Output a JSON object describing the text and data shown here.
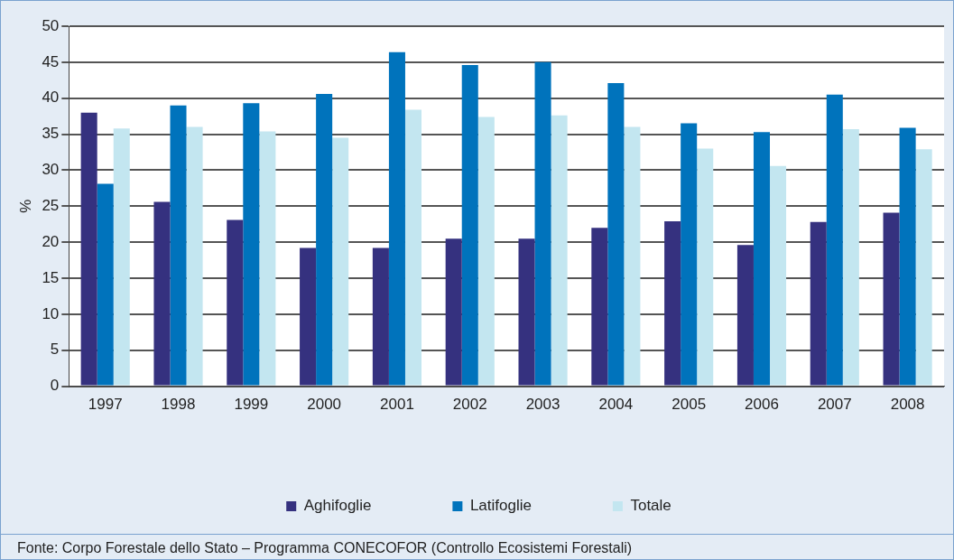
{
  "chart_data": {
    "type": "bar",
    "ylabel": "%",
    "categories": [
      "1997",
      "1998",
      "1999",
      "2000",
      "2001",
      "2002",
      "2003",
      "2004",
      "2005",
      "2006",
      "2007",
      "2008"
    ],
    "series": [
      {
        "name": "Aghifoglie",
        "color": "#35317f",
        "values": [
          38.0,
          25.6,
          23.1,
          19.2,
          19.2,
          20.5,
          20.5,
          22.0,
          22.9,
          19.6,
          22.8,
          24.1
        ]
      },
      {
        "name": "Latifoglie",
        "color": "#0073bc",
        "values": [
          28.1,
          39.0,
          39.3,
          40.6,
          46.4,
          44.6,
          45.0,
          42.1,
          36.5,
          35.3,
          40.5,
          35.9
        ]
      },
      {
        "name": "Totale",
        "color": "#c3e6f0",
        "values": [
          35.8,
          36.0,
          35.4,
          34.5,
          38.4,
          37.4,
          37.6,
          36.0,
          33.0,
          30.6,
          35.7,
          32.9
        ]
      }
    ],
    "ylim": [
      0,
      50
    ],
    "yticks": [
      0,
      5,
      10,
      15,
      20,
      25,
      30,
      35,
      40,
      45,
      50
    ],
    "grid": "y",
    "legend": "bottom",
    "annotations": [
      "Fonte: Corpo Forestale dello Stato – Programma CONECOFOR (Controllo Ecosistemi Forestali)"
    ]
  }
}
